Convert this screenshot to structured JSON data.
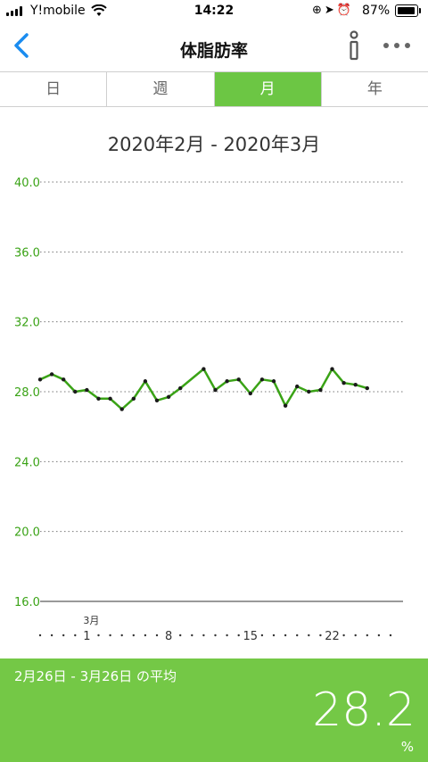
{
  "status": {
    "carrier": "Y!mobile",
    "time": "14:22",
    "battery": "87%"
  },
  "nav": {
    "title": "体脂肪率"
  },
  "tabs": [
    {
      "label": "日",
      "active": false
    },
    {
      "label": "週",
      "active": false
    },
    {
      "label": "月",
      "active": true
    },
    {
      "label": "年",
      "active": false
    }
  ],
  "range_label": "2020年2月 - 2020年3月",
  "chart_data": {
    "type": "line",
    "ylim": [
      16.0,
      40.0
    ],
    "y_ticks": [
      "40.0",
      "36.0",
      "32.0",
      "28.0",
      "24.0",
      "20.0",
      "16.0"
    ],
    "x_labels": [
      {
        "day": 5,
        "label": "1",
        "month": "3月"
      },
      {
        "day": 12,
        "label": "8"
      },
      {
        "day": 19,
        "label": "15"
      },
      {
        "day": 26,
        "label": "22"
      }
    ],
    "x_dots": 31,
    "color": "#3aa316",
    "series": [
      {
        "values": [
          [
            1,
            28.7
          ],
          [
            2,
            29.0
          ],
          [
            3,
            28.7
          ],
          [
            4,
            28.0
          ],
          [
            5,
            28.1
          ],
          [
            6,
            27.6
          ],
          [
            7,
            27.6
          ],
          [
            8,
            27.0
          ],
          [
            9,
            27.6
          ],
          [
            10,
            28.6
          ],
          [
            11,
            27.5
          ],
          [
            12,
            27.7
          ],
          [
            13,
            28.2
          ],
          [
            15,
            29.3
          ],
          [
            16,
            28.1
          ],
          [
            17,
            28.6
          ],
          [
            18,
            28.7
          ],
          [
            19,
            27.9
          ],
          [
            20,
            28.7
          ],
          [
            21,
            28.6
          ],
          [
            22,
            27.2
          ],
          [
            23,
            28.3
          ],
          [
            24,
            28.0
          ],
          [
            25,
            28.1
          ],
          [
            26,
            29.3
          ],
          [
            27,
            28.5
          ],
          [
            28,
            28.4
          ],
          [
            29,
            28.2
          ]
        ]
      }
    ]
  },
  "footer": {
    "label": "2月26日 - 3月26日 の平均",
    "value": "28.2",
    "unit": "%"
  }
}
